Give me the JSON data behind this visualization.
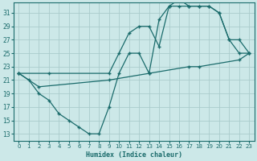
{
  "xlabel": "Humidex (Indice chaleur)",
  "bg_color": "#cce8e8",
  "grid_color": "#aacccc",
  "line_color": "#1a6b6b",
  "xlim": [
    -0.5,
    23.5
  ],
  "ylim": [
    12.0,
    32.5
  ],
  "xticks": [
    0,
    1,
    2,
    3,
    4,
    5,
    6,
    7,
    8,
    9,
    10,
    11,
    12,
    13,
    14,
    15,
    16,
    17,
    18,
    19,
    20,
    21,
    22,
    23
  ],
  "yticks": [
    13,
    15,
    17,
    19,
    21,
    23,
    25,
    27,
    29,
    31
  ],
  "line1_x": [
    0,
    1,
    2,
    3,
    4,
    5,
    6,
    7,
    8,
    9,
    10,
    11,
    12,
    13,
    14,
    15,
    16,
    17,
    18,
    19,
    20,
    21,
    22,
    23
  ],
  "line1_y": [
    22,
    21,
    19,
    18,
    16,
    15,
    14,
    13,
    13,
    17,
    22,
    25,
    25,
    22,
    30,
    32,
    32,
    32,
    32,
    32,
    31,
    27,
    25,
    25
  ],
  "line2_x": [
    0,
    3,
    9,
    10,
    11,
    12,
    13,
    14,
    15,
    16,
    17,
    18,
    19,
    20,
    21,
    22,
    23
  ],
  "line2_y": [
    22,
    22,
    22,
    25,
    28,
    29,
    29,
    26,
    32,
    33,
    32,
    32,
    32,
    31,
    27,
    27,
    25
  ],
  "line3_x": [
    0,
    2,
    9,
    13,
    17,
    18,
    22,
    23
  ],
  "line3_y": [
    22,
    20,
    21,
    22,
    23,
    23,
    24,
    25
  ]
}
